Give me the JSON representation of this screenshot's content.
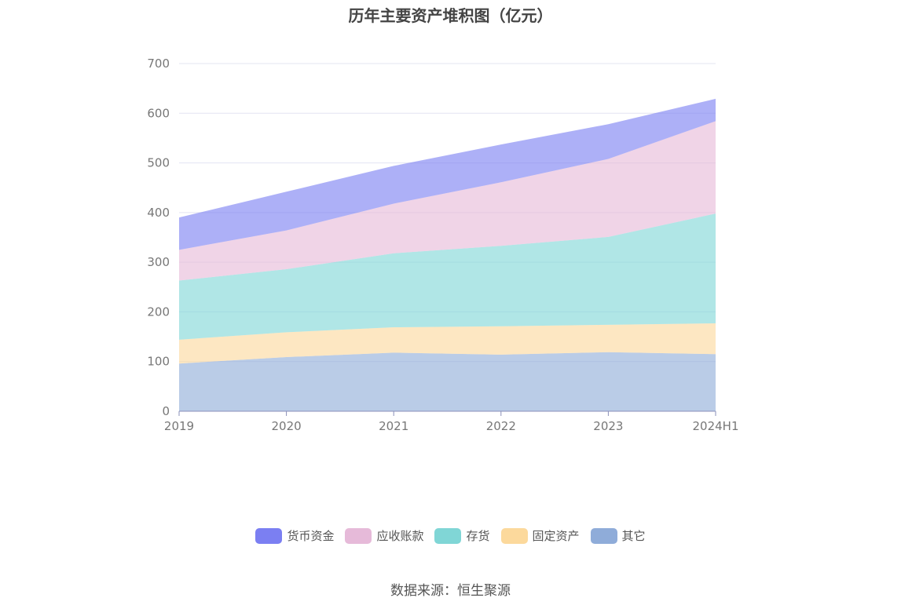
{
  "chart_data": {
    "type": "area",
    "stacked": true,
    "title": "历年主要资产堆积图（亿元）",
    "categories": [
      "2019",
      "2020",
      "2021",
      "2022",
      "2023",
      "2024H1"
    ],
    "ylim": [
      0,
      700
    ],
    "yticks": [
      "0",
      "100",
      "200",
      "300",
      "400",
      "500",
      "600",
      "700"
    ],
    "grid": true,
    "legend_position": "bottom",
    "series": [
      {
        "name": "其它",
        "color": "#8facd9",
        "values": [
          96,
          109,
          118,
          114,
          119,
          115
        ]
      },
      {
        "name": "固定资产",
        "color": "#fcd99c",
        "values": [
          48,
          50,
          51,
          57,
          55,
          62
        ]
      },
      {
        "name": "存货",
        "color": "#80d6d6",
        "values": [
          119,
          127,
          149,
          162,
          177,
          221
        ]
      },
      {
        "name": "应收账款",
        "color": "#e6bad9",
        "values": [
          62,
          78,
          100,
          128,
          157,
          186
        ]
      },
      {
        "name": "货币资金",
        "color": "#7b7ff2",
        "values": [
          65,
          78,
          76,
          76,
          70,
          45
        ]
      }
    ],
    "legend_order": [
      "货币资金",
      "应收账款",
      "存货",
      "固定资产",
      "其它"
    ]
  },
  "source": "数据来源：恒生聚源"
}
